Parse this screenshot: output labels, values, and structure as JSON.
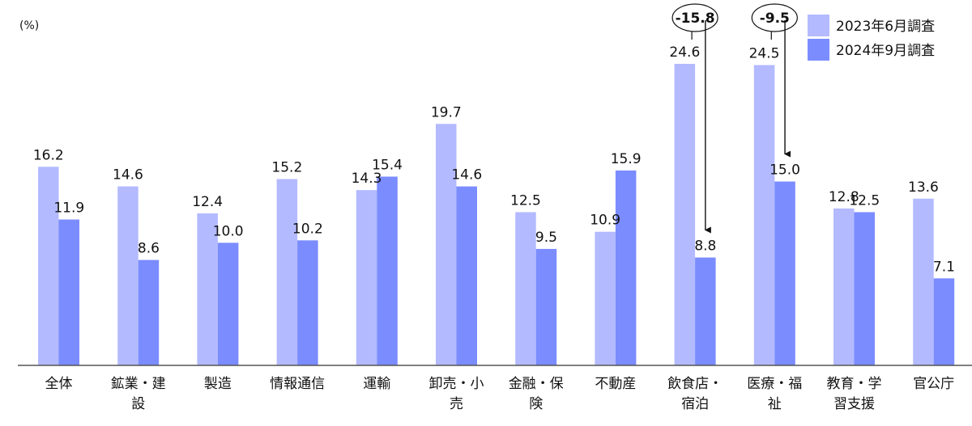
{
  "chart_data": {
    "type": "bar",
    "unit_label": "(%)",
    "categories": [
      [
        "全体"
      ],
      [
        "鉱業・建",
        "設"
      ],
      [
        "製造"
      ],
      [
        "情報通信"
      ],
      [
        "運輸"
      ],
      [
        "卸売・小",
        "売"
      ],
      [
        "金融・保",
        "険"
      ],
      [
        "不動産"
      ],
      [
        "飲食店・",
        "宿泊"
      ],
      [
        "医療・福",
        "祉"
      ],
      [
        "教育・学",
        "習支援"
      ],
      [
        "官公庁"
      ]
    ],
    "series": [
      {
        "name": "2023年6月調査",
        "color": "#b3baff",
        "values": [
          16.2,
          14.6,
          12.4,
          15.2,
          14.3,
          19.7,
          12.5,
          10.9,
          24.6,
          24.5,
          12.8,
          13.6
        ],
        "labels": [
          "16.2",
          "14.6",
          "12.4",
          "15.2",
          "14.3",
          "19.7",
          "12.5",
          "10.9",
          "24.6",
          "24.5",
          "12.8",
          "13.6"
        ]
      },
      {
        "name": "2024年9月調査",
        "color": "#7b8cff",
        "values": [
          11.9,
          8.6,
          10.0,
          10.2,
          15.4,
          14.6,
          9.5,
          15.9,
          8.8,
          15.0,
          12.5,
          7.1
        ],
        "labels": [
          "11.9",
          "8.6",
          "10.0",
          "10.2",
          "15.4",
          "14.6",
          "9.5",
          "15.9",
          "8.8",
          "15.0",
          "12.5",
          "7.1"
        ]
      }
    ],
    "annotations": [
      {
        "category_index": 8,
        "text": "-15.8"
      },
      {
        "category_index": 9,
        "text": "-9.5"
      }
    ],
    "ylim": [
      0,
      27.5
    ],
    "grid": false,
    "legend_position": "top-right"
  }
}
